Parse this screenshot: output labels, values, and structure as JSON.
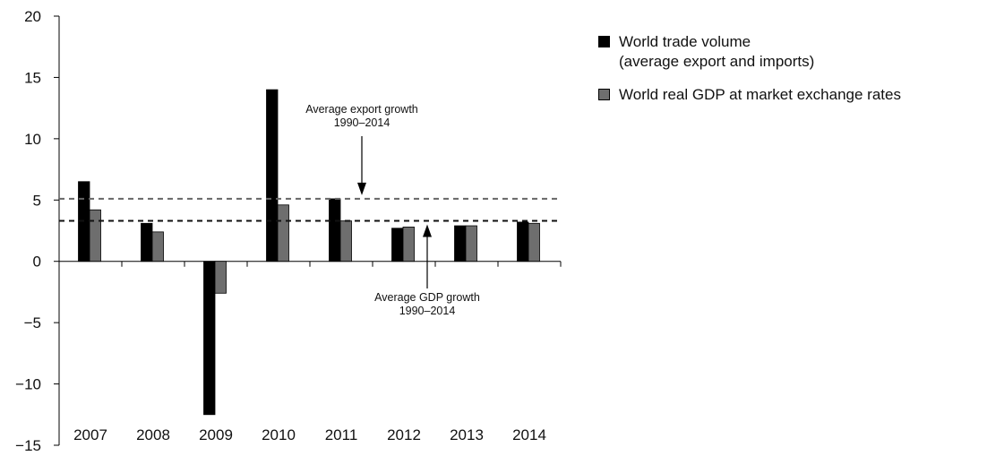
{
  "chart_data": {
    "type": "bar",
    "categories": [
      "2007",
      "2008",
      "2009",
      "2010",
      "2011",
      "2012",
      "2013",
      "2014"
    ],
    "series": [
      {
        "name": "World trade volume\n(average export and imports)",
        "color": "#000000",
        "values": [
          6.5,
          3.1,
          -12.5,
          14.0,
          5.1,
          2.7,
          2.9,
          3.2
        ]
      },
      {
        "name": "World real GDP at market exchange rates",
        "color": "#6e6e6e",
        "values": [
          4.2,
          2.4,
          -2.6,
          4.6,
          3.3,
          2.8,
          2.9,
          3.1
        ]
      }
    ],
    "reference_lines": [
      {
        "value": 5.1,
        "color": "#666666",
        "label_lines": [
          "Average export growth",
          "1990–2014"
        ]
      },
      {
        "value": 3.3,
        "color": "#111111",
        "label_lines": [
          "Average GDP growth",
          "1990–2014"
        ]
      }
    ],
    "ylim": [
      -15,
      20
    ],
    "yticks": [
      -15,
      -10,
      -5,
      0,
      5,
      10,
      15,
      20
    ],
    "ytick_labels": [
      "−15",
      "−10",
      "−5",
      "0",
      "5",
      "10",
      "15",
      "20"
    ],
    "xlabel": "",
    "ylabel": "",
    "legend_position": "top-right",
    "grid": false
  },
  "legend": {
    "trade_label_line1": "World trade volume",
    "trade_label_line2": "(average export and imports)",
    "gdp_label": "World real GDP at market exchange rates"
  }
}
